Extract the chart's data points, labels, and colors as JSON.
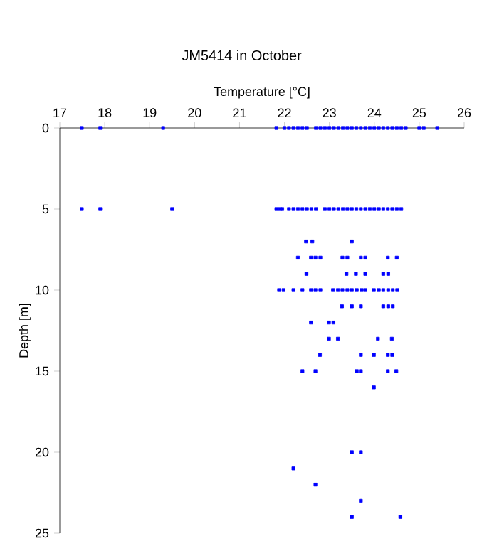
{
  "chart_data": {
    "type": "scatter",
    "title": "JM5414 in October",
    "xlabel": "Temperature [°C]",
    "ylabel": "Depth [m]",
    "xlim": [
      17,
      26
    ],
    "xticks": [
      17,
      18,
      19,
      20,
      21,
      22,
      23,
      24,
      25,
      26
    ],
    "ylim": [
      25,
      0
    ],
    "yticks": [
      0,
      5,
      10,
      15,
      20,
      25
    ],
    "marker": "square",
    "series": [
      {
        "color": "#0000ff",
        "x": [
          17.49,
          17.9,
          19.3,
          21.82,
          22.0,
          22.1,
          22.2,
          22.3,
          22.4,
          22.5,
          22.7,
          22.8,
          22.9,
          23.0,
          23.1,
          23.2,
          23.3,
          23.4,
          23.5,
          23.6,
          23.7,
          23.8,
          23.9,
          24.0,
          24.1,
          24.2,
          24.3,
          24.4,
          24.5,
          24.6,
          24.7,
          25.0,
          25.1,
          25.4,
          17.49,
          17.9,
          19.5,
          21.82,
          21.9,
          21.95,
          22.1,
          22.2,
          22.3,
          22.4,
          22.5,
          22.6,
          22.7,
          22.9,
          23.0,
          23.1,
          23.2,
          23.3,
          23.4,
          23.5,
          23.6,
          23.7,
          23.8,
          23.9,
          24.0,
          24.1,
          24.2,
          24.3,
          24.4,
          24.5,
          24.6,
          22.48,
          22.62,
          23.5,
          22.3,
          22.59,
          22.69,
          22.8,
          23.29,
          23.4,
          23.7,
          23.8,
          24.3,
          24.5,
          22.49,
          23.38,
          23.59,
          23.8,
          24.2,
          24.31,
          21.88,
          21.98,
          22.2,
          22.4,
          22.59,
          22.69,
          22.8,
          23.08,
          23.19,
          23.29,
          23.4,
          23.5,
          23.61,
          23.72,
          23.8,
          23.99,
          24.1,
          24.2,
          24.31,
          24.41,
          24.51,
          23.28,
          23.5,
          23.7,
          24.2,
          24.31,
          24.41,
          22.59,
          22.99,
          23.09,
          22.99,
          23.19,
          24.08,
          24.39,
          22.79,
          23.7,
          23.99,
          24.3,
          24.4,
          22.4,
          22.69,
          23.61,
          23.7,
          24.3,
          24.49,
          23.99,
          23.5,
          23.7,
          22.2,
          22.69,
          23.7,
          23.5,
          24.58
        ],
        "values": [
          0,
          0,
          0,
          0,
          0,
          0,
          0,
          0,
          0,
          0,
          0,
          0,
          0,
          0,
          0,
          0,
          0,
          0,
          0,
          0,
          0,
          0,
          0,
          0,
          0,
          0,
          0,
          0,
          0,
          0,
          0,
          0,
          0,
          0,
          5,
          5,
          5,
          5,
          5,
          5,
          5,
          5,
          5,
          5,
          5,
          5,
          5,
          5,
          5,
          5,
          5,
          5,
          5,
          5,
          5,
          5,
          5,
          5,
          5,
          5,
          5,
          5,
          5,
          5,
          5,
          7,
          7,
          7,
          8,
          8,
          8,
          8,
          8,
          8,
          8,
          8,
          8,
          8,
          9,
          9,
          9,
          9,
          9,
          9,
          10,
          10,
          10,
          10,
          10,
          10,
          10,
          10,
          10,
          10,
          10,
          10,
          10,
          10,
          10,
          10,
          10,
          10,
          10,
          10,
          10,
          11,
          11,
          11,
          11,
          11,
          11,
          12,
          12,
          12,
          13,
          13,
          13,
          13,
          14,
          14,
          14,
          14,
          14,
          15,
          15,
          15,
          15,
          15,
          15,
          16,
          20,
          20,
          21,
          22,
          23,
          24,
          24
        ]
      }
    ]
  }
}
